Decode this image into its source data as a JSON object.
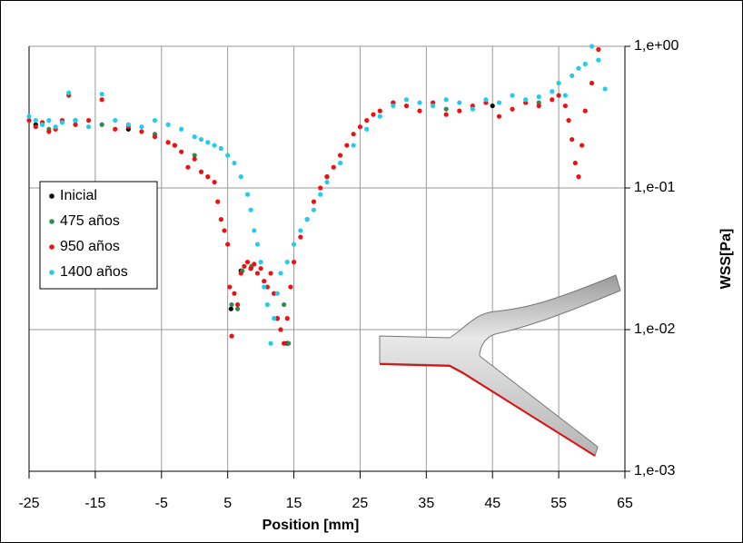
{
  "chart_data": {
    "type": "scatter",
    "xlabel": "Position [mm]",
    "ylabel": "WSS[Pa]",
    "xlim": [
      -25,
      65
    ],
    "ylim": [
      0.001,
      1
    ],
    "log_y": true,
    "grid": true,
    "legend": "left",
    "xticks": [
      -25,
      -15,
      -5,
      5,
      15,
      25,
      35,
      45,
      55,
      65
    ],
    "yticks": [
      {
        "value": 1,
        "label": "1,e+00"
      },
      {
        "value": 0.1,
        "label": "1,e-01"
      },
      {
        "value": 0.01,
        "label": "1,e-02"
      },
      {
        "value": 0.001,
        "label": "1,e-03"
      }
    ],
    "series": [
      {
        "name": "Inicial",
        "color": "#000000",
        "x": [
          -24,
          -18,
          -10,
          -3,
          5.5,
          7,
          8.5,
          12.5,
          14,
          20,
          30,
          45
        ],
        "values": [
          0.28,
          0.3,
          0.26,
          0.2,
          0.014,
          0.026,
          0.027,
          0.012,
          0.008,
          0.12,
          0.4,
          0.38
        ]
      },
      {
        "name": "475 años",
        "color": "#2e8b57",
        "x": [
          -22,
          -14,
          -6,
          0,
          5.6,
          6.5,
          7.2,
          8.6,
          12,
          13.5,
          14.2,
          22,
          38,
          52
        ],
        "values": [
          0.26,
          0.28,
          0.24,
          0.17,
          0.015,
          0.014,
          0.026,
          0.028,
          0.018,
          0.015,
          0.008,
          0.17,
          0.36,
          0.4
        ]
      },
      {
        "name": "950 años",
        "color": "#ee1111",
        "x": [
          -25,
          -24,
          -23,
          -22,
          -21,
          -20,
          -19,
          -18,
          -16,
          -14,
          -12,
          -10,
          -8,
          -6,
          -4,
          -3,
          -2,
          -1,
          0,
          1,
          2,
          3,
          3.5,
          4,
          4.5,
          5,
          5.3,
          5.6,
          6,
          6.5,
          7,
          7.5,
          8,
          8.5,
          9,
          9.5,
          10,
          10.5,
          11,
          11.5,
          12,
          12.5,
          13,
          13.5,
          14,
          14.5,
          15,
          16,
          17,
          18,
          19,
          20,
          21,
          22,
          23,
          24,
          25,
          26,
          27,
          28,
          30,
          32,
          34,
          36,
          38,
          40,
          42,
          44,
          46,
          48,
          50,
          52,
          54,
          55,
          56,
          56.5,
          57,
          57.5,
          58,
          58.5,
          59,
          60,
          61
        ],
        "values": [
          0.3,
          0.27,
          0.29,
          0.25,
          0.26,
          0.3,
          0.45,
          0.28,
          0.3,
          0.42,
          0.26,
          0.27,
          0.25,
          0.23,
          0.21,
          0.2,
          0.18,
          0.14,
          0.16,
          0.13,
          0.12,
          0.11,
          0.08,
          0.06,
          0.05,
          0.04,
          0.02,
          0.009,
          0.018,
          0.015,
          0.025,
          0.028,
          0.03,
          0.027,
          0.029,
          0.025,
          0.027,
          0.022,
          0.02,
          0.025,
          0.018,
          0.012,
          0.01,
          0.008,
          0.012,
          0.02,
          0.03,
          0.045,
          0.06,
          0.08,
          0.1,
          0.12,
          0.14,
          0.17,
          0.2,
          0.24,
          0.27,
          0.3,
          0.33,
          0.35,
          0.4,
          0.38,
          0.35,
          0.4,
          0.33,
          0.35,
          0.38,
          0.4,
          0.32,
          0.36,
          0.4,
          0.38,
          0.42,
          0.45,
          0.38,
          0.3,
          0.22,
          0.15,
          0.12,
          0.2,
          0.35,
          0.55,
          0.95
        ]
      },
      {
        "name": "1400 años",
        "color": "#22ccee",
        "x": [
          -25,
          -24,
          -23,
          -22,
          -21,
          -20,
          -19,
          -18,
          -16,
          -14,
          -12,
          -10,
          -8,
          -6,
          -4,
          -2,
          0,
          1,
          2,
          3,
          4,
          5,
          6,
          7,
          8,
          8.5,
          9,
          9.5,
          10,
          10.5,
          11,
          11.5,
          12,
          12.5,
          13,
          14,
          15,
          16,
          17,
          18,
          19,
          20,
          22,
          24,
          26,
          28,
          30,
          32,
          34,
          36,
          38,
          40,
          42,
          44,
          46,
          48,
          50,
          52,
          54,
          55,
          56,
          57,
          58,
          59,
          60,
          61,
          62
        ],
        "values": [
          0.32,
          0.3,
          0.28,
          0.3,
          0.27,
          0.29,
          0.47,
          0.3,
          0.27,
          0.46,
          0.3,
          0.28,
          0.27,
          0.3,
          0.28,
          0.26,
          0.23,
          0.22,
          0.21,
          0.2,
          0.19,
          0.17,
          0.15,
          0.12,
          0.09,
          0.07,
          0.05,
          0.04,
          0.03,
          0.02,
          0.015,
          0.008,
          0.012,
          0.018,
          0.025,
          0.03,
          0.04,
          0.05,
          0.06,
          0.07,
          0.09,
          0.11,
          0.15,
          0.2,
          0.26,
          0.32,
          0.38,
          0.42,
          0.4,
          0.38,
          0.42,
          0.4,
          0.36,
          0.42,
          0.4,
          0.45,
          0.42,
          0.44,
          0.48,
          0.55,
          0.45,
          0.62,
          0.7,
          0.75,
          1.0,
          0.8,
          0.5
        ]
      }
    ]
  }
}
